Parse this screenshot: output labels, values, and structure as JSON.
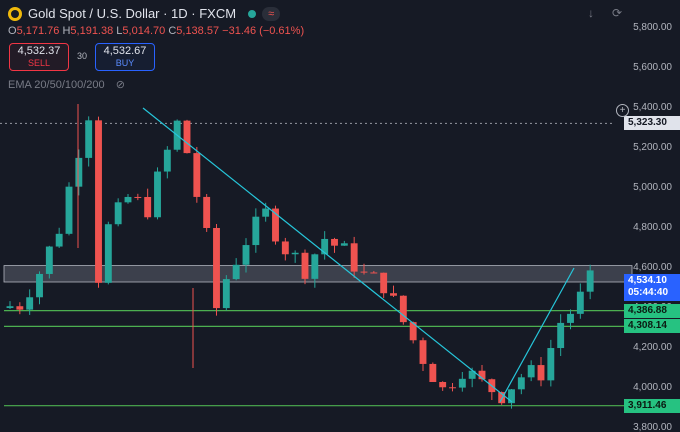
{
  "header": {
    "symbol_title": "Gold Spot / U.S. Dollar · 1D · FXCM"
  },
  "ohlc": {
    "o_label": "O",
    "o": "5,171.76",
    "h_label": "H",
    "h": "5,191.38",
    "l_label": "L",
    "l": "5,014.70",
    "c_label": "C",
    "c": "5,138.57",
    "change": "−31.46 (−0.61%)"
  },
  "trade": {
    "sell_price": "4,532.37",
    "sell_label": "SELL",
    "spread": "30",
    "buy_price": "4,532.67",
    "buy_label": "BUY"
  },
  "indicator": {
    "ema_label": "EMA 20/50/100/200"
  },
  "icons": [
    "gold-logo-icon",
    "market-open-icon",
    "arrow-down-icon",
    "settings-icon",
    "add-level-icon",
    "eye-off-icon"
  ],
  "colors": {
    "bull": "#26a69a",
    "bear": "#ef5350",
    "level": "#4caf50",
    "trend": "#26c6da",
    "current": "#2962ff"
  },
  "chart_data": {
    "type": "candlestick",
    "ylim": [
      3780,
      5930
    ],
    "y_ticks": [
      "5,800.00",
      "5,600.00",
      "5,400.00",
      "5,200.00",
      "5,000.00",
      "4,800.00",
      "4,600.00",
      "4,400.00",
      "4,200.00",
      "4,000.00",
      "3,800.00"
    ],
    "y_tick_values": [
      5800,
      5600,
      5400,
      5200,
      5000,
      4800,
      4600,
      4400,
      4200,
      4000,
      3800
    ],
    "crosshair": {
      "value": 5323.3,
      "label": "5,323.30"
    },
    "current": {
      "price": "4,534.10",
      "countdown": "05:44:40",
      "value": 4534.1
    },
    "levels": [
      {
        "value": 4386.88,
        "label": "4,386.88"
      },
      {
        "value": 4308.14,
        "label": "4,308.14"
      },
      {
        "value": 3911.46,
        "label": "3,911.46"
      }
    ],
    "zone": {
      "from": 4530,
      "to": 4612
    },
    "trendlines": [
      {
        "from": [
          1,
          5400
        ],
        "to": [
          43,
          3930
        ]
      },
      {
        "from": [
          42,
          3930
        ],
        "to": [
          62,
          4600
        ]
      }
    ],
    "trend_legs": [
      [
        0,
        4400
      ],
      [
        2,
        4420
      ],
      [
        4,
        4580
      ],
      [
        6,
        4800
      ],
      [
        8,
        5200
      ],
      [
        9,
        5380
      ],
      [
        10,
        4560
      ],
      [
        11,
        4800
      ],
      [
        13,
        4950
      ],
      [
        15,
        4900
      ],
      [
        17,
        5180
      ],
      [
        18,
        5320
      ],
      [
        19,
        5180
      ],
      [
        21,
        4750
      ],
      [
        22,
        4400
      ],
      [
        23,
        4550
      ],
      [
        25,
        4740
      ],
      [
        27,
        4870
      ],
      [
        29,
        4700
      ],
      [
        31,
        4600
      ],
      [
        33,
        4750
      ],
      [
        35,
        4680
      ],
      [
        37,
        4560
      ],
      [
        39,
        4520
      ],
      [
        41,
        4330
      ],
      [
        43,
        4150
      ],
      [
        45,
        3990
      ],
      [
        47,
        4100
      ],
      [
        49,
        4020
      ],
      [
        51,
        3970
      ],
      [
        53,
        4060
      ],
      [
        55,
        4080
      ],
      [
        56,
        4200
      ],
      [
        57,
        4330
      ],
      [
        58,
        4380
      ],
      [
        59,
        4450
      ],
      [
        60,
        4534
      ]
    ]
  }
}
